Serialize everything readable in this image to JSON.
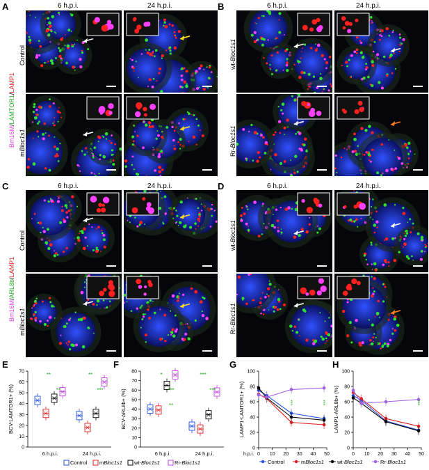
{
  "panels": {
    "A": {
      "letter": "A",
      "col1": "6 h.p.i.",
      "col2": "24 h.p.i.",
      "row1": "Control",
      "row2": "mBloc1s1",
      "row2_pre": "m",
      "row2_it": "Bloc1s1"
    },
    "B": {
      "letter": "B",
      "col1": "6 h.p.i.",
      "col2": "24 h.p.i.",
      "row1_pre": "wt-",
      "row1_it": "Bloc1s1",
      "row2_pre": "Rr-",
      "row2_it": "Bloc1s1"
    },
    "C": {
      "letter": "C",
      "col1": "6 h.p.i.",
      "col2": "24 h.p.i.",
      "row1": "Control",
      "row2_pre": "m",
      "row2_it": "Bloc1s1"
    },
    "D": {
      "letter": "D",
      "col1": "6 h.p.i.",
      "col2": "24 h.p.i.",
      "row1_pre": "wt-",
      "row1_it": "Bloc1s1",
      "row2_pre": "Rr-",
      "row2_it": "Bloc1s1"
    },
    "E": {
      "letter": "E"
    },
    "F": {
      "letter": "F"
    },
    "G": {
      "letter": "G"
    },
    "H": {
      "letter": "H"
    }
  },
  "stainA": {
    "p1": "Bm16M",
    "p2": "/",
    "p3": "LAMTOR1",
    "p4": "/",
    "p5": "LAMP1"
  },
  "stainC": {
    "p1": "Bm16M",
    "p2": "/",
    "p3": "ARL8b",
    "p4": "/",
    "p5": "LAMP1"
  },
  "colors": {
    "magenta": "#e040e0",
    "green": "#22aa22",
    "red": "#e02020",
    "blue": "#2050e0",
    "black": "#000000",
    "violet": "#a060e0"
  },
  "chart_data": [
    {
      "panel": "E",
      "type": "box",
      "ylabel": "BCV-LAMTOR1+ (%)",
      "ylim": [
        0,
        70
      ],
      "yticks": [
        0,
        10,
        20,
        30,
        40,
        50,
        60,
        70
      ],
      "categories": [
        "6 h.p.i.",
        "24 h.p.i."
      ],
      "series": [
        {
          "name": "Control",
          "color": "#2050e0",
          "medians": [
            43,
            29
          ]
        },
        {
          "name": "mBloc1s1",
          "color": "#e02020",
          "medians": [
            31,
            18
          ]
        },
        {
          "name": "wt-Bloc1s1",
          "color": "#000000",
          "medians": [
            45,
            31
          ]
        },
        {
          "name": "Rr-Bloc1s1",
          "color": "#c040e0",
          "medians": [
            51,
            60
          ]
        }
      ],
      "annotations": [
        "**",
        "**",
        "**",
        "***"
      ]
    },
    {
      "panel": "F",
      "type": "box",
      "ylabel": "BCV-ARL8b+ (%)",
      "ylim": [
        0,
        80
      ],
      "yticks": [
        0,
        10,
        20,
        30,
        40,
        50,
        60,
        70,
        80
      ],
      "categories": [
        "6 h.p.i.",
        "24 h.p.i."
      ],
      "series": [
        {
          "name": "Control",
          "color": "#2050e0",
          "medians": [
            40,
            22
          ]
        },
        {
          "name": "mBloc1s1",
          "color": "#e02020",
          "medians": [
            39,
            19
          ]
        },
        {
          "name": "wt-Bloc1s1",
          "color": "#000000",
          "medians": [
            65,
            34
          ]
        },
        {
          "name": "Rr-Bloc1s1",
          "color": "#c040e0",
          "medians": [
            76,
            58
          ]
        }
      ],
      "annotations": [
        "*",
        "***",
        "***",
        "***",
        "**"
      ]
    },
    {
      "panel": "G",
      "type": "line",
      "ylabel": "LAMP1-LAMTOR1+ (%)",
      "xlabel": "h.p.i.",
      "xlim": [
        0,
        50
      ],
      "ylim": [
        0,
        100
      ],
      "xticks": [
        0,
        10,
        20,
        30,
        40,
        50
      ],
      "yticks": [
        0,
        20,
        40,
        60,
        80,
        100
      ],
      "x": [
        0,
        6,
        24,
        48
      ],
      "series": [
        {
          "name": "Control",
          "color": "#2050e0",
          "values": [
            75,
            68,
            45,
            38
          ]
        },
        {
          "name": "mBloc1s1",
          "color": "#e02020",
          "values": [
            70,
            64,
            33,
            30
          ]
        },
        {
          "name": "wt-Bloc1s1",
          "color": "#000000",
          "values": [
            78,
            65,
            40,
            36
          ]
        },
        {
          "name": "Rr-Bloc1s1",
          "color": "#a060e0",
          "values": [
            69,
            66,
            76,
            78
          ]
        }
      ],
      "annotations": [
        "***",
        "***"
      ]
    },
    {
      "panel": "H",
      "type": "line",
      "ylabel": "LAMP1-ARL8b+ (%)",
      "xlim": [
        0,
        50
      ],
      "ylim": [
        0,
        100
      ],
      "xticks": [
        0,
        10,
        20,
        30,
        40,
        50
      ],
      "yticks": [
        0,
        20,
        40,
        60,
        80,
        100
      ],
      "x": [
        0,
        6,
        24,
        48
      ],
      "series": [
        {
          "name": "Control",
          "color": "#2050e0",
          "values": [
            68,
            62,
            35,
            23
          ]
        },
        {
          "name": "mBloc1s1",
          "color": "#e02020",
          "values": [
            72,
            64,
            38,
            28
          ]
        },
        {
          "name": "wt-Bloc1s1",
          "color": "#000000",
          "values": [
            65,
            58,
            34,
            22
          ]
        },
        {
          "name": "Rr-Bloc1s1",
          "color": "#a060e0",
          "values": [
            75,
            58,
            60,
            63
          ]
        }
      ],
      "annotations": [
        "***"
      ]
    }
  ],
  "legend": {
    "items": [
      {
        "label": "Control",
        "color": "#2050e0"
      },
      {
        "label_pre": "m",
        "label_it": "Bloc1s1",
        "color": "#e02020"
      },
      {
        "label_pre": "wt-",
        "label_it": "Bloc1s1",
        "color": "#000000"
      },
      {
        "label_pre": "Rr-",
        "label_it": "Bloc1s1",
        "color": "#c040e0"
      }
    ]
  },
  "legendG": {
    "items": [
      {
        "label": "Control",
        "color": "#2050e0"
      },
      {
        "label_pre": "m",
        "label_it": "Bloc1s1",
        "color": "#e02020"
      },
      {
        "label_pre": "wt-",
        "label_it": "Bloc1s1",
        "color": "#000000"
      },
      {
        "label_pre": "Rr-",
        "label_it": "Bloc1s1",
        "color": "#a060e0"
      }
    ]
  }
}
